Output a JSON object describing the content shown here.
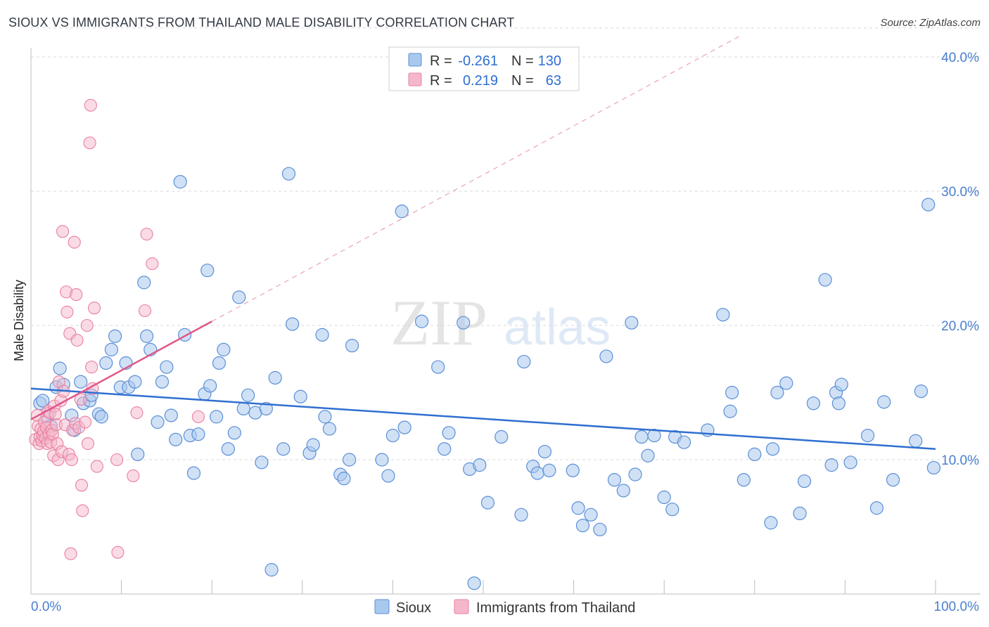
{
  "title": "SIOUX VS IMMIGRANTS FROM THAILAND MALE DISABILITY CORRELATION CHART",
  "source": "Source: ZipAtlas.com",
  "watermark": {
    "zip": "ZIP",
    "atlas": "atlas"
  },
  "colors": {
    "sioux_fill": "#a9c8ee",
    "sioux_stroke": "#5b8fd6",
    "sioux_line": "#2f6fd0",
    "thai_fill": "#f5b8cb",
    "thai_stroke": "#e8809f",
    "thai_line": "#e0588a",
    "axis_text": "#4a7fd0",
    "grid": "#d8d8d8"
  },
  "legend_top": {
    "rows": [
      {
        "r_label": "R = ",
        "r_value": "-0.261",
        "n_label": "N = ",
        "n_value": "130"
      },
      {
        "r_label": "R = ",
        "r_value": "0.219",
        "n_label": "N = ",
        "n_value": "63"
      }
    ]
  },
  "chart_data": {
    "type": "scatter",
    "title": "SIOUX VS IMMIGRANTS FROM THAILAND MALE DISABILITY CORRELATION CHART",
    "xlabel": "",
    "ylabel": "Male Disability",
    "xlim": [
      0,
      100
    ],
    "ylim": [
      0,
      42
    ],
    "x_tick_labels": [
      "0.0%",
      "100.0%"
    ],
    "y_ticks": [
      10,
      20,
      30,
      40
    ],
    "y_tick_labels": [
      "10.0%",
      "20.0%",
      "30.0%",
      "40.0%"
    ],
    "grid": true,
    "legend_placement": "bottom",
    "series": [
      {
        "name": "Sioux",
        "trend": {
          "x0": 0,
          "y0": 15.3,
          "x1": 100,
          "y1": 10.8
        },
        "points": [
          [
            1.0,
            14.2
          ],
          [
            1.3,
            14.4
          ],
          [
            1.8,
            13.2
          ],
          [
            2.2,
            12.5
          ],
          [
            2.8,
            15.4
          ],
          [
            3.2,
            16.8
          ],
          [
            3.6,
            15.6
          ],
          [
            4.5,
            13.3
          ],
          [
            4.8,
            12.2
          ],
          [
            5.5,
            15.8
          ],
          [
            5.8,
            14.2
          ],
          [
            6.5,
            14.4
          ],
          [
            6.7,
            14.8
          ],
          [
            7.5,
            13.4
          ],
          [
            7.8,
            13.2
          ],
          [
            8.3,
            17.2
          ],
          [
            8.9,
            18.2
          ],
          [
            9.3,
            19.2
          ],
          [
            9.9,
            15.4
          ],
          [
            10.5,
            17.2
          ],
          [
            10.8,
            15.4
          ],
          [
            11.5,
            15.8
          ],
          [
            11.8,
            10.4
          ],
          [
            12.5,
            23.2
          ],
          [
            12.8,
            19.2
          ],
          [
            13.2,
            18.2
          ],
          [
            14.0,
            12.8
          ],
          [
            14.5,
            15.8
          ],
          [
            15.0,
            16.9
          ],
          [
            15.5,
            13.3
          ],
          [
            16.0,
            11.5
          ],
          [
            16.5,
            30.7
          ],
          [
            17.0,
            19.3
          ],
          [
            17.6,
            11.8
          ],
          [
            18.0,
            9.0
          ],
          [
            18.5,
            11.9
          ],
          [
            19.2,
            14.9
          ],
          [
            19.5,
            24.1
          ],
          [
            19.8,
            15.5
          ],
          [
            20.5,
            13.2
          ],
          [
            20.8,
            17.2
          ],
          [
            21.3,
            18.2
          ],
          [
            21.8,
            10.8
          ],
          [
            22.5,
            12.0
          ],
          [
            23.0,
            22.1
          ],
          [
            23.5,
            13.8
          ],
          [
            24.0,
            14.8
          ],
          [
            24.8,
            13.5
          ],
          [
            25.5,
            9.8
          ],
          [
            26.0,
            13.8
          ],
          [
            26.6,
            1.8
          ],
          [
            27.0,
            16.1
          ],
          [
            27.9,
            10.8
          ],
          [
            28.5,
            31.3
          ],
          [
            28.9,
            20.1
          ],
          [
            29.8,
            14.7
          ],
          [
            30.8,
            10.5
          ],
          [
            31.2,
            11.1
          ],
          [
            32.2,
            19.3
          ],
          [
            32.5,
            13.2
          ],
          [
            33.0,
            12.3
          ],
          [
            34.2,
            8.9
          ],
          [
            34.6,
            8.6
          ],
          [
            35.2,
            10.0
          ],
          [
            35.5,
            18.5
          ],
          [
            38.8,
            10.0
          ],
          [
            39.5,
            8.8
          ],
          [
            40.0,
            11.8
          ],
          [
            41.0,
            28.5
          ],
          [
            41.3,
            12.4
          ],
          [
            43.2,
            20.3
          ],
          [
            45.0,
            16.9
          ],
          [
            45.7,
            10.8
          ],
          [
            46.2,
            12.0
          ],
          [
            47.8,
            20.2
          ],
          [
            48.5,
            9.3
          ],
          [
            49.0,
            0.8
          ],
          [
            49.6,
            9.6
          ],
          [
            50.5,
            6.8
          ],
          [
            52.0,
            11.7
          ],
          [
            54.2,
            5.9
          ],
          [
            54.5,
            17.3
          ],
          [
            55.5,
            9.5
          ],
          [
            56.0,
            9.0
          ],
          [
            56.8,
            10.6
          ],
          [
            57.3,
            9.2
          ],
          [
            59.9,
            9.2
          ],
          [
            60.5,
            6.4
          ],
          [
            61.0,
            5.1
          ],
          [
            61.9,
            5.9
          ],
          [
            62.9,
            4.8
          ],
          [
            63.6,
            17.7
          ],
          [
            64.5,
            8.5
          ],
          [
            65.5,
            7.7
          ],
          [
            66.4,
            20.2
          ],
          [
            66.8,
            8.9
          ],
          [
            67.5,
            11.7
          ],
          [
            68.2,
            10.3
          ],
          [
            68.9,
            11.8
          ],
          [
            70.0,
            7.2
          ],
          [
            70.9,
            6.3
          ],
          [
            71.2,
            11.7
          ],
          [
            72.2,
            11.3
          ],
          [
            74.8,
            12.2
          ],
          [
            76.5,
            20.8
          ],
          [
            77.3,
            13.6
          ],
          [
            77.5,
            15.0
          ],
          [
            78.8,
            8.5
          ],
          [
            80.0,
            10.4
          ],
          [
            81.8,
            5.3
          ],
          [
            82.0,
            10.8
          ],
          [
            82.5,
            15.0
          ],
          [
            83.5,
            15.7
          ],
          [
            85.0,
            6.0
          ],
          [
            85.5,
            8.4
          ],
          [
            86.5,
            14.2
          ],
          [
            87.8,
            23.4
          ],
          [
            88.5,
            9.6
          ],
          [
            89.0,
            15.0
          ],
          [
            89.3,
            14.2
          ],
          [
            89.6,
            15.6
          ],
          [
            90.6,
            9.8
          ],
          [
            92.5,
            11.8
          ],
          [
            93.5,
            6.4
          ],
          [
            94.3,
            14.3
          ],
          [
            95.3,
            8.5
          ],
          [
            97.8,
            11.4
          ],
          [
            98.4,
            15.1
          ],
          [
            99.2,
            29.0
          ],
          [
            99.8,
            9.4
          ]
        ]
      },
      {
        "name": "Immigrants from Thailand",
        "trend": {
          "x0": 0,
          "y0": 13.0,
          "x1": 20,
          "y1": 20.3
        },
        "trend_extension": {
          "x0": 20,
          "y0": 20.3,
          "x1": 78.5,
          "y1": 41.6
        },
        "points": [
          [
            0.5,
            11.5
          ],
          [
            0.7,
            13.3
          ],
          [
            0.8,
            12.5
          ],
          [
            0.9,
            11.2
          ],
          [
            1.0,
            11.7
          ],
          [
            1.1,
            12.3
          ],
          [
            1.2,
            11.4
          ],
          [
            1.3,
            11.8
          ],
          [
            1.4,
            12.1
          ],
          [
            1.5,
            12.8
          ],
          [
            1.6,
            11.6
          ],
          [
            1.7,
            12.4
          ],
          [
            1.8,
            11.2
          ],
          [
            1.9,
            13.6
          ],
          [
            2.0,
            11.9
          ],
          [
            2.1,
            13.5
          ],
          [
            2.2,
            11.3
          ],
          [
            2.3,
            12.2
          ],
          [
            2.4,
            11.9
          ],
          [
            2.5,
            10.3
          ],
          [
            2.6,
            14.0
          ],
          [
            2.7,
            13.4
          ],
          [
            2.8,
            12.6
          ],
          [
            2.9,
            11.2
          ],
          [
            3.0,
            10.0
          ],
          [
            3.1,
            15.8
          ],
          [
            3.3,
            14.4
          ],
          [
            3.4,
            10.6
          ],
          [
            3.5,
            27.0
          ],
          [
            3.6,
            15.1
          ],
          [
            3.8,
            12.6
          ],
          [
            3.9,
            22.5
          ],
          [
            4.0,
            21.0
          ],
          [
            4.2,
            10.4
          ],
          [
            4.3,
            19.4
          ],
          [
            4.4,
            3.0
          ],
          [
            4.5,
            10.0
          ],
          [
            4.6,
            12.2
          ],
          [
            4.8,
            26.2
          ],
          [
            4.9,
            12.7
          ],
          [
            5.0,
            22.3
          ],
          [
            5.1,
            18.9
          ],
          [
            5.3,
            12.4
          ],
          [
            5.5,
            14.5
          ],
          [
            5.6,
            8.1
          ],
          [
            5.7,
            6.2
          ],
          [
            6.0,
            12.8
          ],
          [
            6.2,
            20.0
          ],
          [
            6.3,
            11.2
          ],
          [
            6.5,
            33.6
          ],
          [
            6.6,
            36.4
          ],
          [
            6.7,
            16.9
          ],
          [
            6.8,
            15.3
          ],
          [
            7.0,
            21.3
          ],
          [
            7.3,
            9.5
          ],
          [
            9.5,
            10.0
          ],
          [
            9.6,
            3.1
          ],
          [
            11.3,
            8.8
          ],
          [
            11.7,
            13.5
          ],
          [
            12.6,
            21.1
          ],
          [
            12.8,
            26.8
          ],
          [
            13.4,
            24.6
          ],
          [
            18.5,
            13.2
          ]
        ]
      }
    ]
  },
  "legend_bottom": {
    "items": [
      "Sioux",
      "Immigrants from Thailand"
    ]
  }
}
